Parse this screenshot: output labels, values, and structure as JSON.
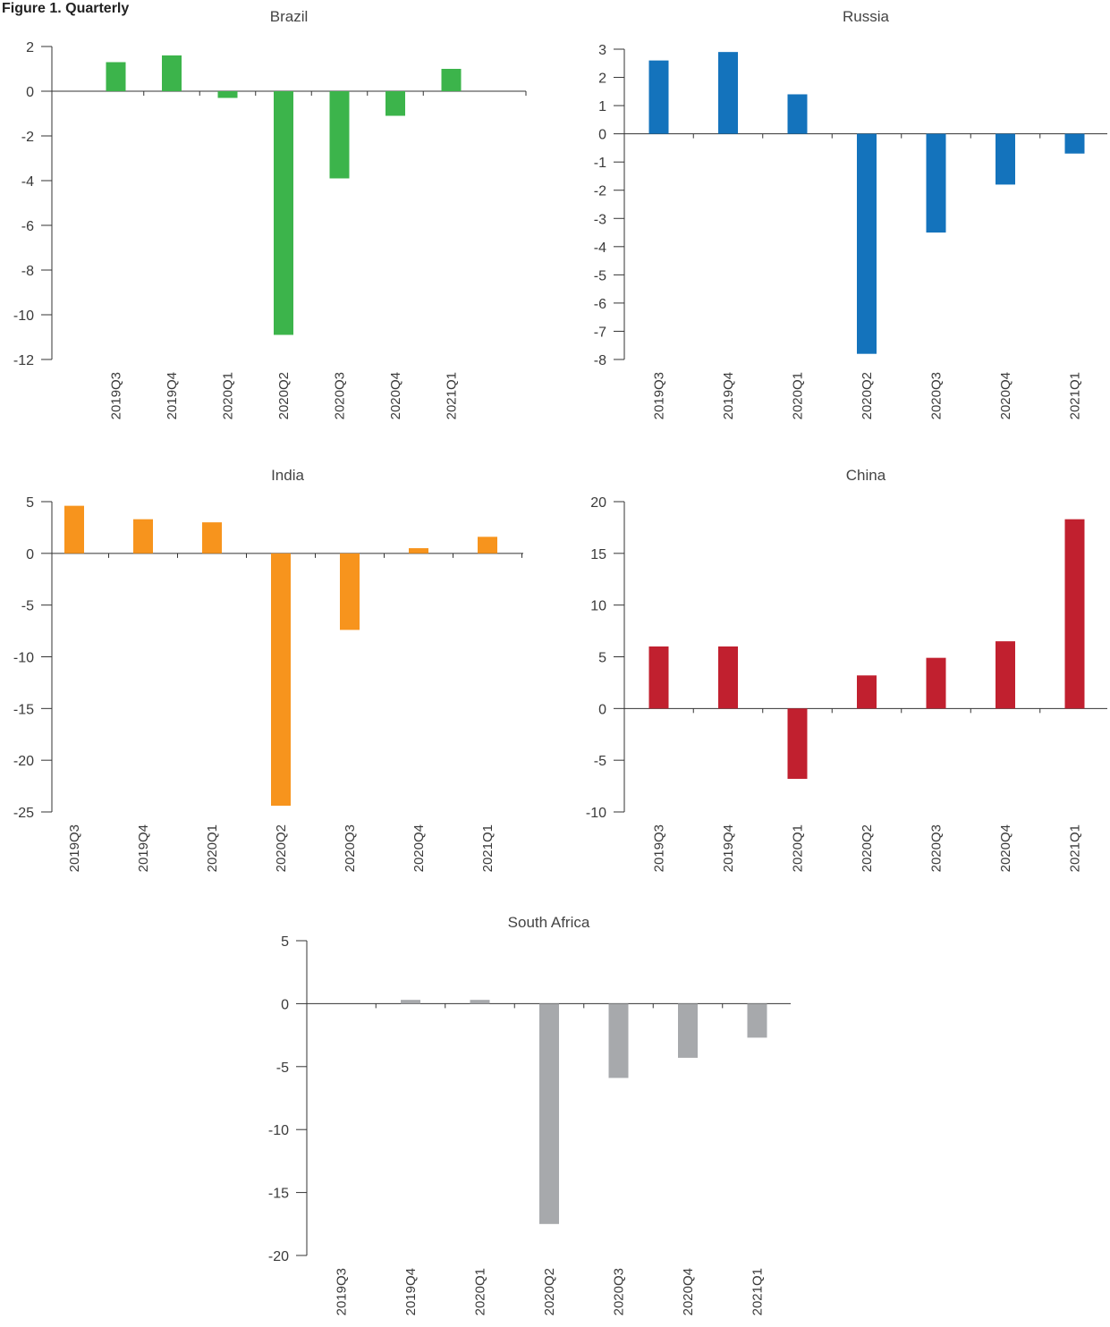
{
  "page": {
    "heading": "Figure 1. Quarterly"
  },
  "chart_data": [
    {
      "type": "bar",
      "title": "Brazil",
      "color": "#3cb44b",
      "categories": [
        "2019Q3",
        "2019Q4",
        "2020Q1",
        "2020Q2",
        "2020Q3",
        "2020Q4",
        "2021Q1"
      ],
      "values": [
        1.3,
        1.6,
        -0.3,
        -10.9,
        -3.9,
        -1.1,
        1.0
      ],
      "ylim": [
        -12,
        2
      ],
      "yticks": [
        2,
        0,
        -2,
        -4,
        -6,
        -8,
        -10,
        -12
      ],
      "xlabel": "",
      "ylabel": "",
      "grid": false
    },
    {
      "type": "bar",
      "title": "Russia",
      "color": "#1473bc",
      "categories": [
        "2019Q3",
        "2019Q4",
        "2020Q1",
        "2020Q2",
        "2020Q3",
        "2020Q4",
        "2021Q1"
      ],
      "values": [
        2.6,
        2.9,
        1.4,
        -7.8,
        -3.5,
        -1.8,
        -0.7
      ],
      "ylim": [
        -8,
        3
      ],
      "yticks": [
        3,
        2,
        1,
        0,
        -1,
        -2,
        -3,
        -4,
        -5,
        -6,
        -7,
        -8
      ],
      "xlabel": "",
      "ylabel": "",
      "grid": false
    },
    {
      "type": "bar",
      "title": "India",
      "color": "#f7941d",
      "categories": [
        "2019Q3",
        "2019Q4",
        "2020Q1",
        "2020Q2",
        "2020Q3",
        "2020Q4",
        "2021Q1"
      ],
      "values": [
        4.6,
        3.3,
        3.0,
        -24.4,
        -7.4,
        0.5,
        1.6
      ],
      "ylim": [
        -25,
        5
      ],
      "yticks": [
        5,
        0,
        -5,
        -10,
        -15,
        -20,
        -25
      ],
      "xlabel": "",
      "ylabel": "",
      "grid": false
    },
    {
      "type": "bar",
      "title": "China",
      "color": "#c1202f",
      "categories": [
        "2019Q3",
        "2019Q4",
        "2020Q1",
        "2020Q2",
        "2020Q3",
        "2020Q4",
        "2021Q1"
      ],
      "values": [
        6.0,
        6.0,
        -6.8,
        3.2,
        4.9,
        6.5,
        18.3
      ],
      "ylim": [
        -10,
        20
      ],
      "yticks": [
        20,
        15,
        10,
        5,
        0,
        -5,
        -10
      ],
      "xlabel": "",
      "ylabel": "",
      "grid": false
    },
    {
      "type": "bar",
      "title": "South Africa",
      "color": "#a7a9ac",
      "categories": [
        "2019Q3",
        "2019Q4",
        "2020Q1",
        "2020Q2",
        "2020Q3",
        "2020Q4",
        "2021Q1"
      ],
      "values": [
        0.0,
        0.3,
        0.3,
        -17.5,
        -5.9,
        -4.3,
        -2.7
      ],
      "ylim": [
        -20,
        5
      ],
      "yticks": [
        5,
        0,
        -5,
        -10,
        -15,
        -20
      ],
      "xlabel": "",
      "ylabel": "",
      "grid": false
    }
  ]
}
